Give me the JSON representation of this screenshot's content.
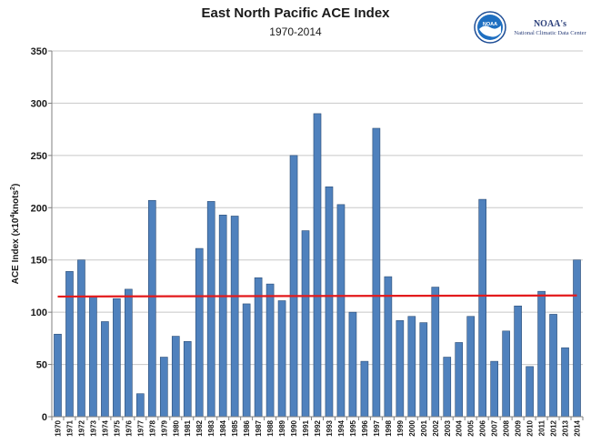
{
  "chart_data": {
    "type": "bar",
    "title": "East North Pacific ACE Index",
    "subtitle": "1970-2014",
    "ylabel_main": "ACE Index (x10",
    "ylabel_sup1": "4",
    "ylabel_mid": "knots",
    "ylabel_sup2": "2",
    "ylabel_end": ")",
    "xlabel": "",
    "ylim": [
      0,
      350
    ],
    "yticks": [
      0,
      50,
      100,
      150,
      200,
      250,
      300,
      350
    ],
    "grid": "horizontal",
    "bar_color": "#4f81bd",
    "bar_edge_color": "#2c4d75",
    "trend_color": "#e31a1c",
    "trend": [
      115,
      116
    ],
    "categories": [
      "1970",
      "1971",
      "1972",
      "1973",
      "1974",
      "1975",
      "1976",
      "1977",
      "1978",
      "1979",
      "1980",
      "1981",
      "1982",
      "1983",
      "1984",
      "1985",
      "1986",
      "1987",
      "1988",
      "1989",
      "1990",
      "1991",
      "1992",
      "1993",
      "1994",
      "1995",
      "1996",
      "1997",
      "1998",
      "1999",
      "2000",
      "2001",
      "2002",
      "2003",
      "2004",
      "2005",
      "2006",
      "2007",
      "2008",
      "2009",
      "2010",
      "2011",
      "2012",
      "2013",
      "2014"
    ],
    "values": [
      79,
      139,
      150,
      115,
      91,
      113,
      122,
      22,
      207,
      57,
      77,
      72,
      161,
      206,
      193,
      192,
      108,
      133,
      127,
      111,
      250,
      178,
      290,
      220,
      203,
      100,
      53,
      276,
      134,
      92,
      96,
      90,
      124,
      57,
      71,
      96,
      208,
      53,
      82,
      106,
      48,
      120,
      98,
      66,
      150
    ]
  },
  "logo": {
    "icon": "noaa-logo-icon",
    "badge_text": "NOAA",
    "line1": "NOAA's",
    "line2": "National Climatic Data Center"
  }
}
